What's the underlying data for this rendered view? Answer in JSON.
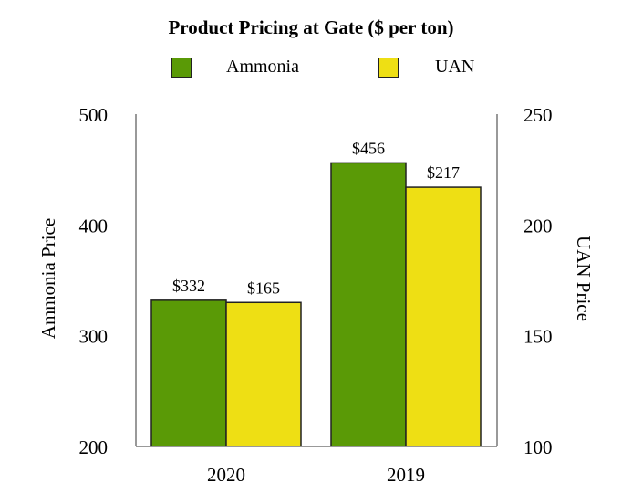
{
  "chart_data": {
    "type": "bar",
    "title": "Product Pricing at Gate ($ per ton)",
    "categories": [
      "2020",
      "2019"
    ],
    "series": [
      {
        "name": "Ammonia",
        "axis": "left",
        "color": "#5a9a06",
        "values": [
          332,
          456
        ],
        "labels": [
          "$332",
          "$456"
        ]
      },
      {
        "name": "UAN",
        "axis": "right",
        "color": "#eedf14",
        "values": [
          165,
          217
        ],
        "labels": [
          "$165",
          "$217"
        ]
      }
    ],
    "ylabel_left": "Ammonia Price",
    "ylabel_right": "UAN Price",
    "ylim_left": [
      200,
      500
    ],
    "ylim_right": [
      100,
      250
    ],
    "yticks_left": [
      "500",
      "400",
      "300",
      "200"
    ],
    "yticks_right": [
      "250",
      "200",
      "150",
      "100"
    ],
    "legend_position": "top-center",
    "grid": false
  }
}
